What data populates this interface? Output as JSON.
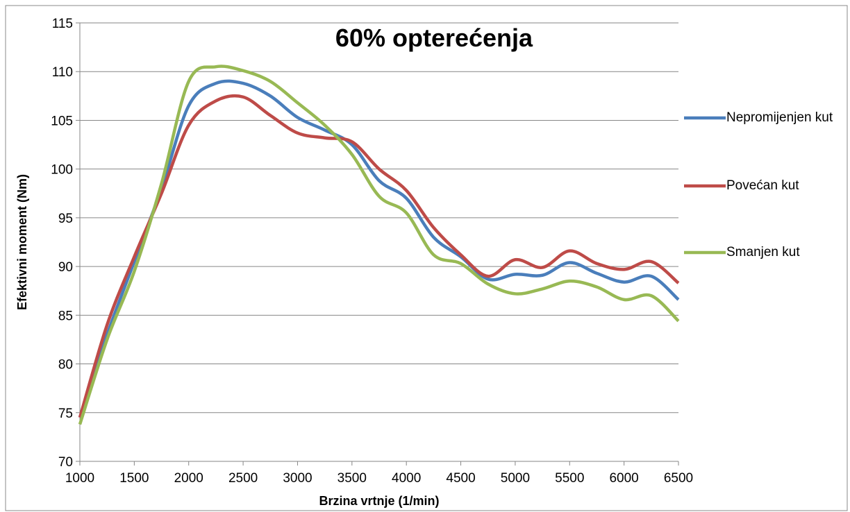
{
  "chart_data": {
    "type": "line",
    "title": "60% opterećenja",
    "x_label": "Brzina vrtnje (1/min)",
    "y_label": "Efektivni moment (Nm)",
    "x": [
      1000,
      1250,
      1500,
      1750,
      2000,
      2250,
      2500,
      2750,
      3000,
      3250,
      3500,
      3750,
      4000,
      4250,
      4500,
      4750,
      5000,
      5250,
      5500,
      5750,
      6000,
      6250,
      6500
    ],
    "series": [
      {
        "name": "Nepromijenjen kut",
        "color": "#4a7ebb",
        "values": [
          74.5,
          83,
          90.5,
          98,
          106.5,
          108.8,
          108.8,
          107.5,
          105.3,
          104,
          102.5,
          98.8,
          97,
          93,
          91,
          88.7,
          89.2,
          89.1,
          90.4,
          89.3,
          88.4,
          89,
          86.6
        ]
      },
      {
        "name": "Povećan kut",
        "color": "#be4b48",
        "values": [
          74.5,
          84,
          91,
          97.5,
          104.5,
          107,
          107.4,
          105.5,
          103.7,
          103.2,
          102.8,
          100,
          97.8,
          94,
          91.2,
          89,
          90.7,
          89.9,
          91.6,
          90.3,
          89.7,
          90.5,
          88.3
        ]
      },
      {
        "name": "Smanjen kut",
        "color": "#98b954",
        "values": [
          73.8,
          82.5,
          89.5,
          98.5,
          109,
          110.5,
          110.1,
          109,
          106.8,
          104.5,
          101.5,
          97.2,
          95.5,
          91.2,
          90.3,
          88.2,
          87.2,
          87.7,
          88.5,
          87.9,
          86.6,
          87,
          84.4
        ]
      }
    ],
    "xlim": [
      1000,
      6500
    ],
    "xticks": [
      1000,
      1500,
      2000,
      2500,
      3000,
      3500,
      4000,
      4500,
      5000,
      5500,
      6000,
      6500
    ],
    "ylim": [
      70,
      115
    ],
    "yticks": [
      70,
      75,
      80,
      85,
      90,
      95,
      100,
      105,
      110,
      115
    ],
    "grid": true,
    "legend": "right"
  }
}
